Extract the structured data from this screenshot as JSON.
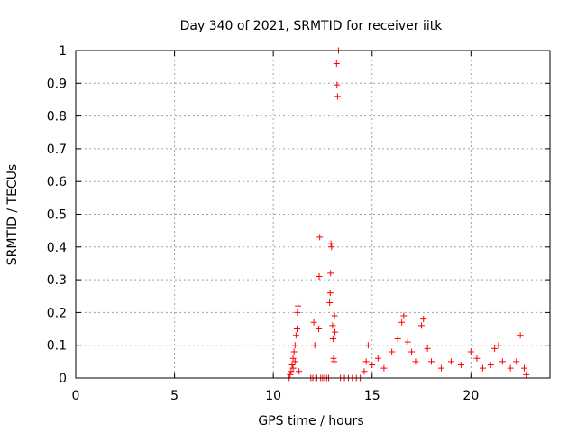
{
  "chart_data": {
    "type": "scatter",
    "title": "Day 340 of 2021, SRMTID for receiver iitk",
    "xlabel": "GPS time / hours",
    "ylabel": "SRMTID / TECUs",
    "xlim": [
      0,
      24
    ],
    "ylim": [
      0,
      1
    ],
    "x_ticks": [
      0,
      5,
      10,
      15,
      20
    ],
    "x_tick_labels": [
      "0",
      "5",
      "10",
      "15",
      "20"
    ],
    "y_ticks": [
      0,
      0.1,
      0.2,
      0.3,
      0.4,
      0.5,
      0.6,
      0.7,
      0.8,
      0.9,
      1
    ],
    "y_tick_labels": [
      "0",
      "0.1",
      "0.2",
      "0.3",
      "0.4",
      "0.5",
      "0.6",
      "0.7",
      "0.8",
      "0.9",
      "1"
    ],
    "grid": true,
    "marker": "+",
    "series": [
      {
        "name": "SRMTID",
        "color": "#ff0000",
        "points": [
          [
            10.8,
            0.0
          ],
          [
            10.85,
            0.01
          ],
          [
            10.9,
            0.02
          ],
          [
            10.95,
            0.04
          ],
          [
            11.0,
            0.06
          ],
          [
            11.05,
            0.08
          ],
          [
            11.1,
            0.1
          ],
          [
            11.15,
            0.13
          ],
          [
            11.2,
            0.15
          ],
          [
            11.22,
            0.2
          ],
          [
            11.25,
            0.22
          ],
          [
            11.1,
            0.05
          ],
          [
            11.0,
            0.03
          ],
          [
            11.3,
            0.02
          ],
          [
            11.9,
            0.0
          ],
          [
            12.0,
            0.0
          ],
          [
            12.05,
            0.17
          ],
          [
            12.1,
            0.1
          ],
          [
            12.15,
            0.0
          ],
          [
            12.2,
            0.0
          ],
          [
            12.3,
            0.15
          ],
          [
            12.32,
            0.31
          ],
          [
            12.35,
            0.43
          ],
          [
            12.4,
            0.0
          ],
          [
            12.5,
            0.0
          ],
          [
            12.6,
            0.0
          ],
          [
            12.7,
            0.0
          ],
          [
            12.8,
            0.0
          ],
          [
            12.85,
            0.23
          ],
          [
            12.88,
            0.26
          ],
          [
            12.9,
            0.32
          ],
          [
            12.92,
            0.41
          ],
          [
            12.95,
            0.4
          ],
          [
            13.0,
            0.16
          ],
          [
            13.02,
            0.12
          ],
          [
            13.05,
            0.06
          ],
          [
            13.08,
            0.05
          ],
          [
            13.1,
            0.19
          ],
          [
            13.12,
            0.14
          ],
          [
            13.2,
            0.96
          ],
          [
            13.22,
            0.895
          ],
          [
            13.25,
            0.86
          ],
          [
            13.3,
            1.0
          ],
          [
            13.4,
            0.0
          ],
          [
            13.6,
            0.0
          ],
          [
            13.8,
            0.0
          ],
          [
            14.0,
            0.0
          ],
          [
            14.2,
            0.0
          ],
          [
            14.4,
            0.0
          ],
          [
            14.6,
            0.02
          ],
          [
            14.7,
            0.05
          ],
          [
            14.8,
            0.1
          ],
          [
            15.0,
            0.04
          ],
          [
            15.3,
            0.06
          ],
          [
            15.6,
            0.03
          ],
          [
            16.0,
            0.08
          ],
          [
            16.3,
            0.12
          ],
          [
            16.5,
            0.17
          ],
          [
            16.6,
            0.19
          ],
          [
            16.8,
            0.11
          ],
          [
            17.0,
            0.08
          ],
          [
            17.2,
            0.05
          ],
          [
            17.5,
            0.16
          ],
          [
            17.6,
            0.18
          ],
          [
            17.8,
            0.09
          ],
          [
            18.0,
            0.05
          ],
          [
            18.5,
            0.03
          ],
          [
            19.0,
            0.05
          ],
          [
            19.5,
            0.04
          ],
          [
            20.0,
            0.08
          ],
          [
            20.3,
            0.06
          ],
          [
            20.6,
            0.03
          ],
          [
            21.0,
            0.04
          ],
          [
            21.2,
            0.09
          ],
          [
            21.4,
            0.1
          ],
          [
            21.6,
            0.05
          ],
          [
            22.0,
            0.03
          ],
          [
            22.3,
            0.05
          ],
          [
            22.5,
            0.13
          ],
          [
            22.7,
            0.03
          ],
          [
            22.8,
            0.01
          ]
        ]
      }
    ]
  }
}
